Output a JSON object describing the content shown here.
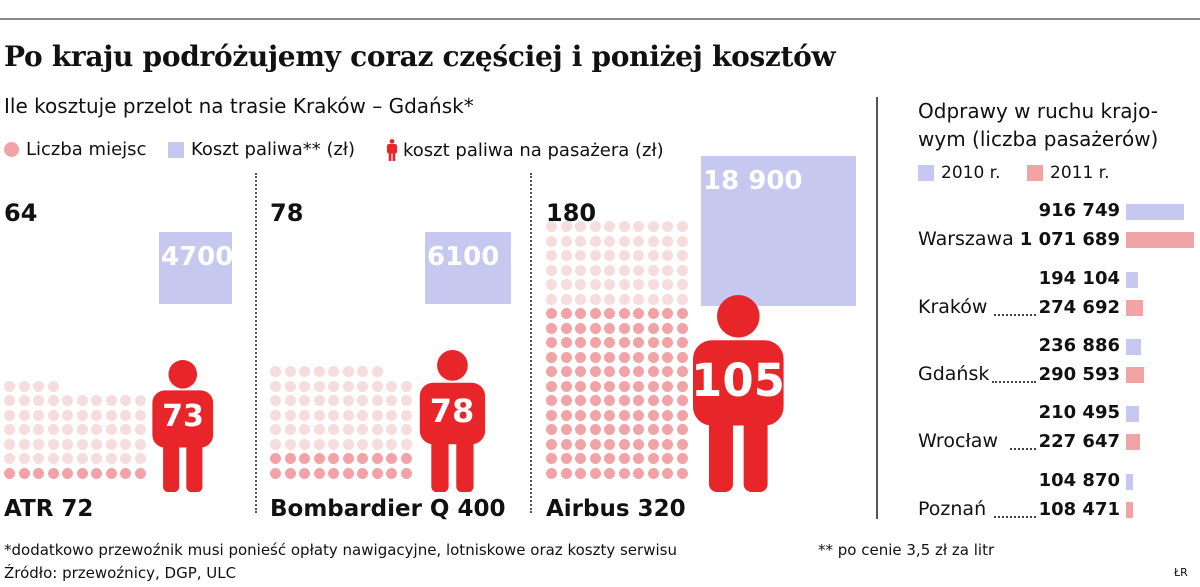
{
  "title": "Po kraju podróżujemy coraz częściej i poniżej kosztów",
  "left_chart": {
    "subtitle": "Ile kosztuje przelot na trasie Kraków – Gdańsk*",
    "legend": {
      "seats": "Liczba miejsc",
      "fuel": "Koszt paliwa** (zł)",
      "per_passenger": "koszt paliwa na pasażera (zł)"
    },
    "colors": {
      "seat_dot_top": "#f6dcdd",
      "seat_dot_bottom": "#f2a3a6",
      "fuel": "#c6c8f0",
      "person": "#e8262a"
    }
  },
  "right_chart": {
    "title_line1": "Odprawy w ruchu krajo-",
    "title_line2": "wym (liczba pasażerów)",
    "legend_2010": "2010 r.",
    "legend_2011": "2011 r.",
    "colors": {
      "2010": "#c6c8f0",
      "2011": "#f2a3a6"
    }
  },
  "chart_data": [
    {
      "type": "bar",
      "categories": [
        "ATR 72",
        "Bombardier Q 400",
        "Airbus 320"
      ],
      "series": [
        {
          "name": "Liczba miejsc",
          "values": [
            64,
            78,
            180
          ],
          "labels": [
            "64",
            "78",
            "180"
          ]
        },
        {
          "name": "Koszt paliwa** (zł)",
          "values": [
            4700,
            6100,
            18900
          ],
          "labels": [
            "4700",
            "6100",
            "18 900"
          ]
        },
        {
          "name": "koszt paliwa na pasażera (zł)",
          "values": [
            73,
            78,
            105
          ],
          "labels": [
            "73",
            "78",
            "105"
          ]
        }
      ]
    },
    {
      "type": "bar",
      "orientation": "horizontal",
      "categories": [
        "Warszawa",
        "Kraków",
        "Gdańsk",
        "Wrocław",
        "Poznań"
      ],
      "series": [
        {
          "name": "2010 r.",
          "values": [
            916749,
            194104,
            236886,
            210495,
            104870
          ],
          "labels": [
            "916 749",
            "194 104",
            "236 886",
            "210 495",
            "104 870"
          ]
        },
        {
          "name": "2011 r.",
          "values": [
            1071689,
            274692,
            290593,
            227647,
            108471
          ],
          "labels": [
            "1 071 689",
            "274 692",
            "290 593",
            "227 647",
            "108 471"
          ]
        }
      ]
    }
  ],
  "footnotes": {
    "note1": "*dodatkowo przewoźnik musi ponieść opłaty nawigacyjne, lotniskowe oraz koszty serwisu",
    "note2": "** po cenie 3,5 zł za litr",
    "source": "Źródło: przewoźnicy, DGP, ULC",
    "credit": "ŁR"
  }
}
